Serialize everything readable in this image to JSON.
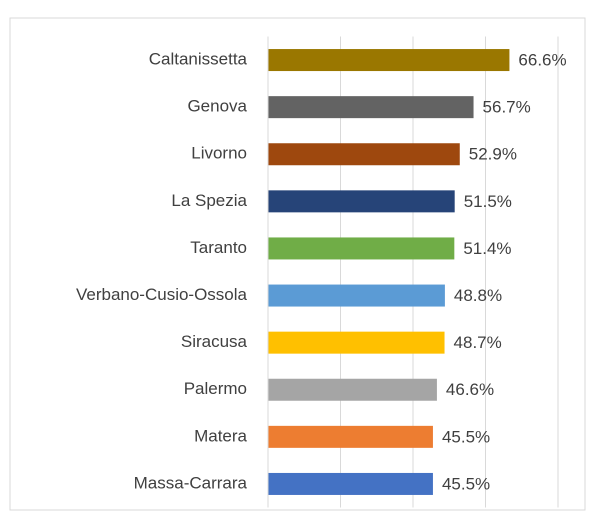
{
  "chart_data": {
    "type": "barh",
    "categories": [
      "Caltanissetta",
      "Genova",
      "Livorno",
      "La Spezia",
      "Taranto",
      "Verbano-Cusio-Ossola",
      "Siracusa",
      "Palermo",
      "Matera",
      "Massa-Carrara"
    ],
    "values": [
      66.6,
      56.7,
      52.9,
      51.5,
      51.4,
      48.8,
      48.7,
      46.6,
      45.5,
      45.5
    ],
    "value_labels": [
      "66.6%",
      "56.7%",
      "52.9%",
      "51.5%",
      "51.4%",
      "48.8%",
      "48.7%",
      "46.6%",
      "45.5%",
      "45.5%"
    ],
    "colors": [
      "#9a7700",
      "#636363",
      "#9e480e",
      "#264478",
      "#70ad47",
      "#5b9bd5",
      "#ffc000",
      "#a5a5a5",
      "#ed7d31",
      "#4472c4"
    ],
    "xlim": [
      0,
      80
    ],
    "xticks": [
      0,
      20,
      40,
      60,
      80
    ],
    "grid": true
  }
}
